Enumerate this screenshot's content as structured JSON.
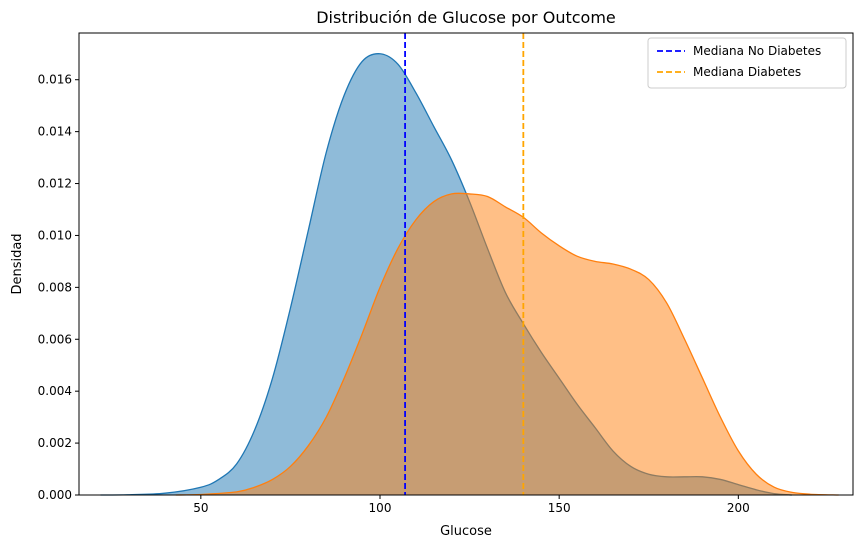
{
  "chart_data": {
    "type": "area",
    "title": "Distribución de Glucose por Outcome",
    "xlabel": "Glucose",
    "ylabel": "Densidad",
    "xlim": [
      16,
      232
    ],
    "ylim": [
      0,
      0.0178
    ],
    "x_ticks": [
      50,
      100,
      150,
      200
    ],
    "x_tick_labels": [
      "50",
      "100",
      "150",
      "200"
    ],
    "y_ticks": [
      0,
      0.002,
      0.004,
      0.006,
      0.008,
      0.01,
      0.012,
      0.014,
      0.016
    ],
    "y_tick_labels": [
      "0.000",
      "0.002",
      "0.004",
      "0.006",
      "0.008",
      "0.010",
      "0.012",
      "0.014",
      "0.016"
    ],
    "grid": false,
    "legend_position": "top-right",
    "series": [
      {
        "color": "#1f77b4",
        "fill_opacity": 0.5,
        "points": [
          [
            22,
            0
          ],
          [
            30,
            1e-05
          ],
          [
            40,
            7e-05
          ],
          [
            50,
            0.0003
          ],
          [
            55,
            0.0006
          ],
          [
            60,
            0.0012
          ],
          [
            65,
            0.0025
          ],
          [
            70,
            0.0045
          ],
          [
            75,
            0.0072
          ],
          [
            80,
            0.0102
          ],
          [
            85,
            0.0132
          ],
          [
            90,
            0.0154
          ],
          [
            95,
            0.0167
          ],
          [
            100,
            0.017
          ],
          [
            105,
            0.0166
          ],
          [
            110,
            0.0155
          ],
          [
            115,
            0.0142
          ],
          [
            120,
            0.0129
          ],
          [
            125,
            0.0113
          ],
          [
            130,
            0.0095
          ],
          [
            135,
            0.0078
          ],
          [
            140,
            0.0066
          ],
          [
            145,
            0.0055
          ],
          [
            150,
            0.0045
          ],
          [
            155,
            0.0035
          ],
          [
            160,
            0.0026
          ],
          [
            165,
            0.0017
          ],
          [
            170,
            0.0011
          ],
          [
            175,
            0.0008
          ],
          [
            180,
            0.0007
          ],
          [
            185,
            0.0007
          ],
          [
            190,
            0.0007
          ],
          [
            195,
            0.0006
          ],
          [
            200,
            0.0004
          ],
          [
            205,
            0.0002
          ],
          [
            210,
            5e-05
          ],
          [
            215,
            0
          ]
        ]
      },
      {
        "color": "#ff7f0e",
        "fill_opacity": 0.5,
        "points": [
          [
            43,
            0
          ],
          [
            50,
            2e-05
          ],
          [
            60,
            0.00012
          ],
          [
            65,
            0.0003
          ],
          [
            70,
            0.0006
          ],
          [
            75,
            0.0011
          ],
          [
            80,
            0.0019
          ],
          [
            85,
            0.003
          ],
          [
            90,
            0.0045
          ],
          [
            95,
            0.0062
          ],
          [
            100,
            0.008
          ],
          [
            105,
            0.0095
          ],
          [
            110,
            0.0106
          ],
          [
            115,
            0.0113
          ],
          [
            120,
            0.0116
          ],
          [
            125,
            0.0116
          ],
          [
            130,
            0.0115
          ],
          [
            135,
            0.0111
          ],
          [
            140,
            0.0107
          ],
          [
            145,
            0.0101
          ],
          [
            150,
            0.0096
          ],
          [
            155,
            0.0092
          ],
          [
            160,
            0.009
          ],
          [
            165,
            0.0089
          ],
          [
            170,
            0.0087
          ],
          [
            175,
            0.0083
          ],
          [
            180,
            0.0074
          ],
          [
            185,
            0.006
          ],
          [
            190,
            0.0045
          ],
          [
            195,
            0.003
          ],
          [
            200,
            0.0017
          ],
          [
            205,
            0.0008
          ],
          [
            210,
            0.0003
          ],
          [
            215,
            0.0001
          ],
          [
            220,
            3e-05
          ],
          [
            228,
            0
          ]
        ]
      }
    ],
    "vlines": [
      {
        "name": "Mediana No Diabetes",
        "x": 107,
        "color": "#0000ff",
        "style": "dashed"
      },
      {
        "name": "Mediana Diabetes",
        "x": 140,
        "color": "#ffa500",
        "style": "dashed"
      }
    ]
  }
}
